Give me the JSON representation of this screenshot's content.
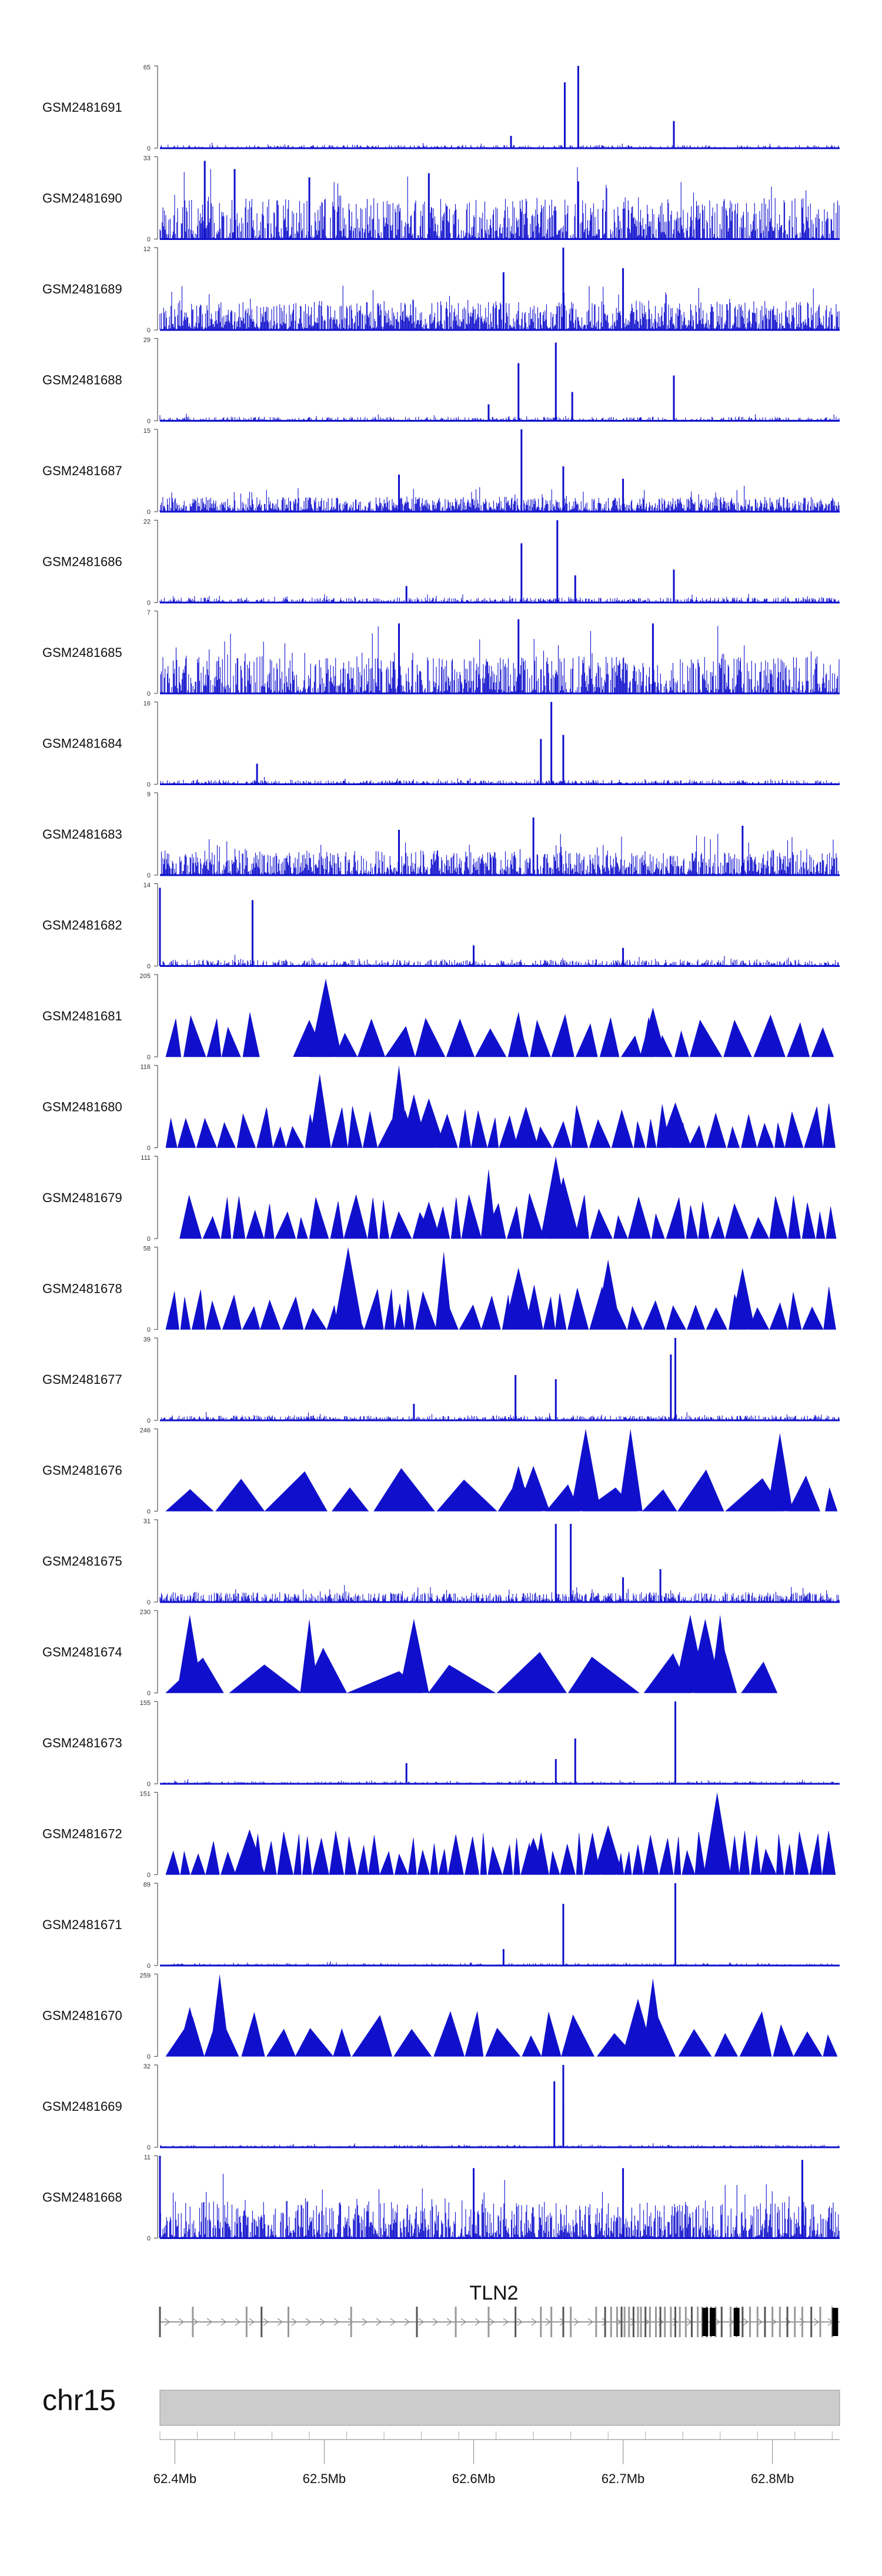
{
  "chart_data": {
    "type": "genome_tracks",
    "chromosome": "chr15",
    "x_range_mb": [
      62.39,
      62.845
    ],
    "axis_ticks": [
      "62.4Mb",
      "62.5Mb",
      "62.6Mb",
      "62.7Mb",
      "62.8Mb"
    ],
    "axis_tick_values_mb": [
      62.4,
      62.5,
      62.6,
      62.7,
      62.8
    ],
    "gene": {
      "name": "TLN2",
      "start_mb": 62.39,
      "end_mb": 62.845,
      "strand": "+",
      "exons_mb": [
        62.39,
        62.412,
        62.448,
        62.458,
        62.476,
        62.518,
        62.562,
        62.588,
        62.61,
        62.628,
        62.645,
        62.652,
        62.66,
        62.665,
        62.682,
        62.688,
        62.692,
        62.696,
        62.699,
        62.701,
        62.704,
        62.707,
        62.71,
        62.712,
        62.715,
        62.718,
        62.722,
        62.725,
        62.728,
        62.732,
        62.735,
        62.738,
        62.742,
        62.746,
        62.75,
        62.753,
        62.756,
        62.759,
        62.762,
        62.766,
        62.772,
        62.776,
        62.78,
        62.785,
        62.79,
        62.795,
        62.8,
        62.805,
        62.81,
        62.815,
        62.82,
        62.826,
        62.832,
        62.84
      ],
      "thick_exons_mb": [
        62.755,
        62.76,
        62.776,
        62.842
      ]
    },
    "color": "#1010cc",
    "tracks": [
      {
        "sample": "GSM2481691",
        "ymax": "65",
        "ymin": "0",
        "style": "bars",
        "density": 0.6,
        "base": 0.04,
        "peaks": [
          [
            62.67,
            1.0
          ],
          [
            62.661,
            0.8
          ],
          [
            62.734,
            0.33
          ],
          [
            62.625,
            0.15
          ]
        ]
      },
      {
        "sample": "GSM2481690",
        "ymax": "33",
        "ymin": "0",
        "style": "bars",
        "density": 0.85,
        "base": 0.5,
        "peaks": [
          [
            62.42,
            0.95
          ],
          [
            62.44,
            0.85
          ],
          [
            62.49,
            0.75
          ],
          [
            62.57,
            0.8
          ],
          [
            62.67,
            0.7
          ]
        ]
      },
      {
        "sample": "GSM2481689",
        "ymax": "12",
        "ymin": "0",
        "style": "bars",
        "density": 1.0,
        "base": 0.35,
        "peaks": [
          [
            62.66,
            1.0
          ],
          [
            62.62,
            0.7
          ],
          [
            62.7,
            0.75
          ]
        ]
      },
      {
        "sample": "GSM2481688",
        "ymax": "29",
        "ymin": "0",
        "style": "bars",
        "density": 0.75,
        "base": 0.05,
        "peaks": [
          [
            62.63,
            0.7
          ],
          [
            62.655,
            0.95
          ],
          [
            62.666,
            0.35
          ],
          [
            62.734,
            0.55
          ],
          [
            62.61,
            0.2
          ]
        ]
      },
      {
        "sample": "GSM2481687",
        "ymax": "15",
        "ymin": "0",
        "style": "bars",
        "density": 1.0,
        "base": 0.18,
        "peaks": [
          [
            62.632,
            1.0
          ],
          [
            62.66,
            0.55
          ],
          [
            62.55,
            0.45
          ],
          [
            62.7,
            0.4
          ]
        ]
      },
      {
        "sample": "GSM2481686",
        "ymax": "22",
        "ymin": "0",
        "style": "bars",
        "density": 0.8,
        "base": 0.06,
        "peaks": [
          [
            62.632,
            0.72
          ],
          [
            62.656,
            1.0
          ],
          [
            62.668,
            0.33
          ],
          [
            62.734,
            0.4
          ],
          [
            62.555,
            0.2
          ]
        ]
      },
      {
        "sample": "GSM2481685",
        "ymax": "7",
        "ymin": "0",
        "style": "bars",
        "density": 0.85,
        "base": 0.45,
        "peaks": [
          [
            62.55,
            0.85
          ],
          [
            62.63,
            0.9
          ],
          [
            62.72,
            0.85
          ]
        ]
      },
      {
        "sample": "GSM2481684",
        "ymax": "16",
        "ymin": "0",
        "style": "bars",
        "density": 0.8,
        "base": 0.05,
        "peaks": [
          [
            62.652,
            1.0
          ],
          [
            62.645,
            0.55
          ],
          [
            62.66,
            0.6
          ],
          [
            62.455,
            0.25
          ]
        ]
      },
      {
        "sample": "GSM2481683",
        "ymax": "9",
        "ymin": "0",
        "style": "bars",
        "density": 0.95,
        "base": 0.3,
        "peaks": [
          [
            62.64,
            0.7
          ],
          [
            62.55,
            0.55
          ],
          [
            62.78,
            0.6
          ]
        ]
      },
      {
        "sample": "GSM2481682",
        "ymax": "14",
        "ymin": "0",
        "style": "bars",
        "density": 0.8,
        "base": 0.08,
        "peaks": [
          [
            62.39,
            0.95
          ],
          [
            62.452,
            0.8
          ],
          [
            62.6,
            0.25
          ],
          [
            62.7,
            0.22
          ]
        ]
      },
      {
        "sample": "GSM2481681",
        "ymax": "205",
        "ymin": "0",
        "style": "triangles",
        "count": 30,
        "tall": [
          [
            62.501,
            0.95
          ],
          [
            62.63,
            0.55
          ],
          [
            62.72,
            0.6
          ],
          [
            62.49,
            0.45
          ]
        ],
        "gaps": [
          [
            62.455,
            62.48
          ]
        ]
      },
      {
        "sample": "GSM2481680",
        "ymax": "116",
        "ymin": "0",
        "style": "triangles",
        "count": 44,
        "tall": [
          [
            62.497,
            0.9
          ],
          [
            62.55,
            1.0
          ],
          [
            62.56,
            0.65
          ],
          [
            62.57,
            0.6
          ],
          [
            62.635,
            0.5
          ],
          [
            62.735,
            0.55
          ]
        ],
        "gaps": []
      },
      {
        "sample": "GSM2481679",
        "ymax": "111",
        "ymin": "0",
        "style": "triangles",
        "count": 42,
        "tall": [
          [
            62.61,
            0.85
          ],
          [
            62.655,
            1.0
          ],
          [
            62.66,
            0.75
          ],
          [
            62.57,
            0.45
          ]
        ],
        "gaps": [
          [
            62.39,
            62.402
          ]
        ]
      },
      {
        "sample": "GSM2481678",
        "ymax": "58",
        "ymin": "0",
        "style": "triangles",
        "count": 44,
        "tall": [
          [
            62.516,
            1.0
          ],
          [
            62.58,
            0.95
          ],
          [
            62.69,
            0.85
          ],
          [
            62.63,
            0.75
          ],
          [
            62.78,
            0.75
          ]
        ],
        "gaps": []
      },
      {
        "sample": "GSM2481677",
        "ymax": "39",
        "ymin": "0",
        "style": "bars",
        "density": 0.8,
        "base": 0.06,
        "peaks": [
          [
            62.735,
            1.0
          ],
          [
            62.732,
            0.8
          ],
          [
            62.628,
            0.55
          ],
          [
            62.655,
            0.5
          ],
          [
            62.56,
            0.2
          ]
        ]
      },
      {
        "sample": "GSM2481676",
        "ymax": "246",
        "ymin": "0",
        "style": "triangles",
        "count": 14,
        "tall": [
          [
            62.675,
            1.0
          ],
          [
            62.705,
            1.0
          ],
          [
            62.805,
            0.95
          ],
          [
            62.63,
            0.55
          ],
          [
            62.64,
            0.55
          ]
        ],
        "gaps": [
          [
            62.845,
            62.845
          ]
        ]
      },
      {
        "sample": "GSM2481675",
        "ymax": "31",
        "ymin": "0",
        "style": "bars",
        "density": 0.9,
        "base": 0.12,
        "peaks": [
          [
            62.655,
            0.95
          ],
          [
            62.665,
            0.95
          ],
          [
            62.725,
            0.4
          ],
          [
            62.7,
            0.3
          ]
        ]
      },
      {
        "sample": "GSM2481674",
        "ymax": "230",
        "ymin": "0",
        "style": "triangles",
        "count": 13,
        "tall": [
          [
            62.41,
            0.95
          ],
          [
            62.49,
            0.9
          ],
          [
            62.56,
            0.9
          ],
          [
            62.745,
            0.95
          ],
          [
            62.765,
            0.95
          ],
          [
            62.755,
            0.9
          ]
        ],
        "gaps": [
          [
            62.795,
            62.845
          ]
        ]
      },
      {
        "sample": "GSM2481673",
        "ymax": "155",
        "ymin": "0",
        "style": "bars",
        "density": 0.55,
        "base": 0.03,
        "peaks": [
          [
            62.735,
            1.0
          ],
          [
            62.668,
            0.55
          ],
          [
            62.655,
            0.3
          ],
          [
            62.555,
            0.25
          ]
        ]
      },
      {
        "sample": "GSM2481672",
        "ymax": "151",
        "ymin": "0",
        "style": "triangles",
        "count": 60,
        "tall": [
          [
            62.763,
            1.0
          ],
          [
            62.45,
            0.55
          ],
          [
            62.69,
            0.6
          ],
          [
            62.64,
            0.45
          ]
        ],
        "gaps": []
      },
      {
        "sample": "GSM2481671",
        "ymax": "89",
        "ymin": "0",
        "style": "bars",
        "density": 0.5,
        "base": 0.03,
        "peaks": [
          [
            62.735,
            1.0
          ],
          [
            62.66,
            0.75
          ],
          [
            62.62,
            0.2
          ]
        ]
      },
      {
        "sample": "GSM2481670",
        "ymax": "259",
        "ymin": "0",
        "style": "triangles",
        "count": 24,
        "tall": [
          [
            62.43,
            1.0
          ],
          [
            62.72,
            0.95
          ],
          [
            62.71,
            0.7
          ],
          [
            62.41,
            0.6
          ]
        ],
        "gaps": []
      },
      {
        "sample": "GSM2481669",
        "ymax": "32",
        "ymin": "0",
        "style": "bars",
        "density": 0.5,
        "base": 0.03,
        "peaks": [
          [
            62.66,
            1.0
          ],
          [
            62.654,
            0.8
          ],
          [
            62.66,
            0.6
          ]
        ]
      },
      {
        "sample": "GSM2481668",
        "ymax": "11",
        "ymin": "0",
        "style": "bars",
        "density": 0.9,
        "base": 0.45,
        "peaks": [
          [
            62.39,
            1.0
          ],
          [
            62.6,
            0.85
          ],
          [
            62.82,
            0.95
          ],
          [
            62.7,
            0.85
          ]
        ]
      }
    ]
  }
}
